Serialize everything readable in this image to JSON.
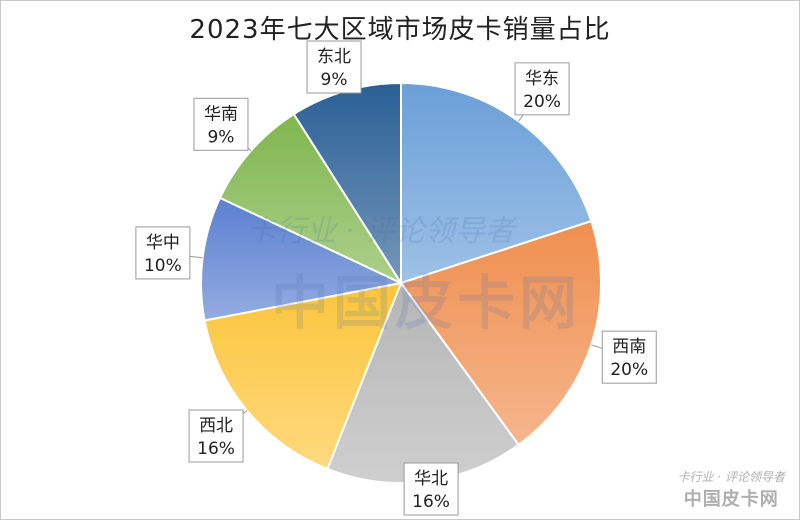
{
  "chart_data": {
    "type": "pie",
    "title": "2023年七大区域市场皮卡销量占比",
    "slices": [
      {
        "label": "华东",
        "pct_label": "20%",
        "value": 20,
        "color": "#6a9fd8"
      },
      {
        "label": "西南",
        "pct_label": "20%",
        "value": 20,
        "color": "#ef8f4f"
      },
      {
        "label": "华北",
        "pct_label": "16%",
        "value": 16,
        "color": "#b5b5b5"
      },
      {
        "label": "西北",
        "pct_label": "16%",
        "value": 16,
        "color": "#fcc53a"
      },
      {
        "label": "华中",
        "pct_label": "10%",
        "value": 10,
        "color": "#5b7fd0"
      },
      {
        "label": "华南",
        "pct_label": "9%",
        "value": 9,
        "color": "#7fb64e"
      },
      {
        "label": "东北",
        "pct_label": "9%",
        "value": 9,
        "color": "#2a5f95"
      }
    ],
    "legend": "none"
  },
  "watermark": {
    "slogan": "卡行业 · 评论领导者",
    "name": "中国皮卡网"
  }
}
